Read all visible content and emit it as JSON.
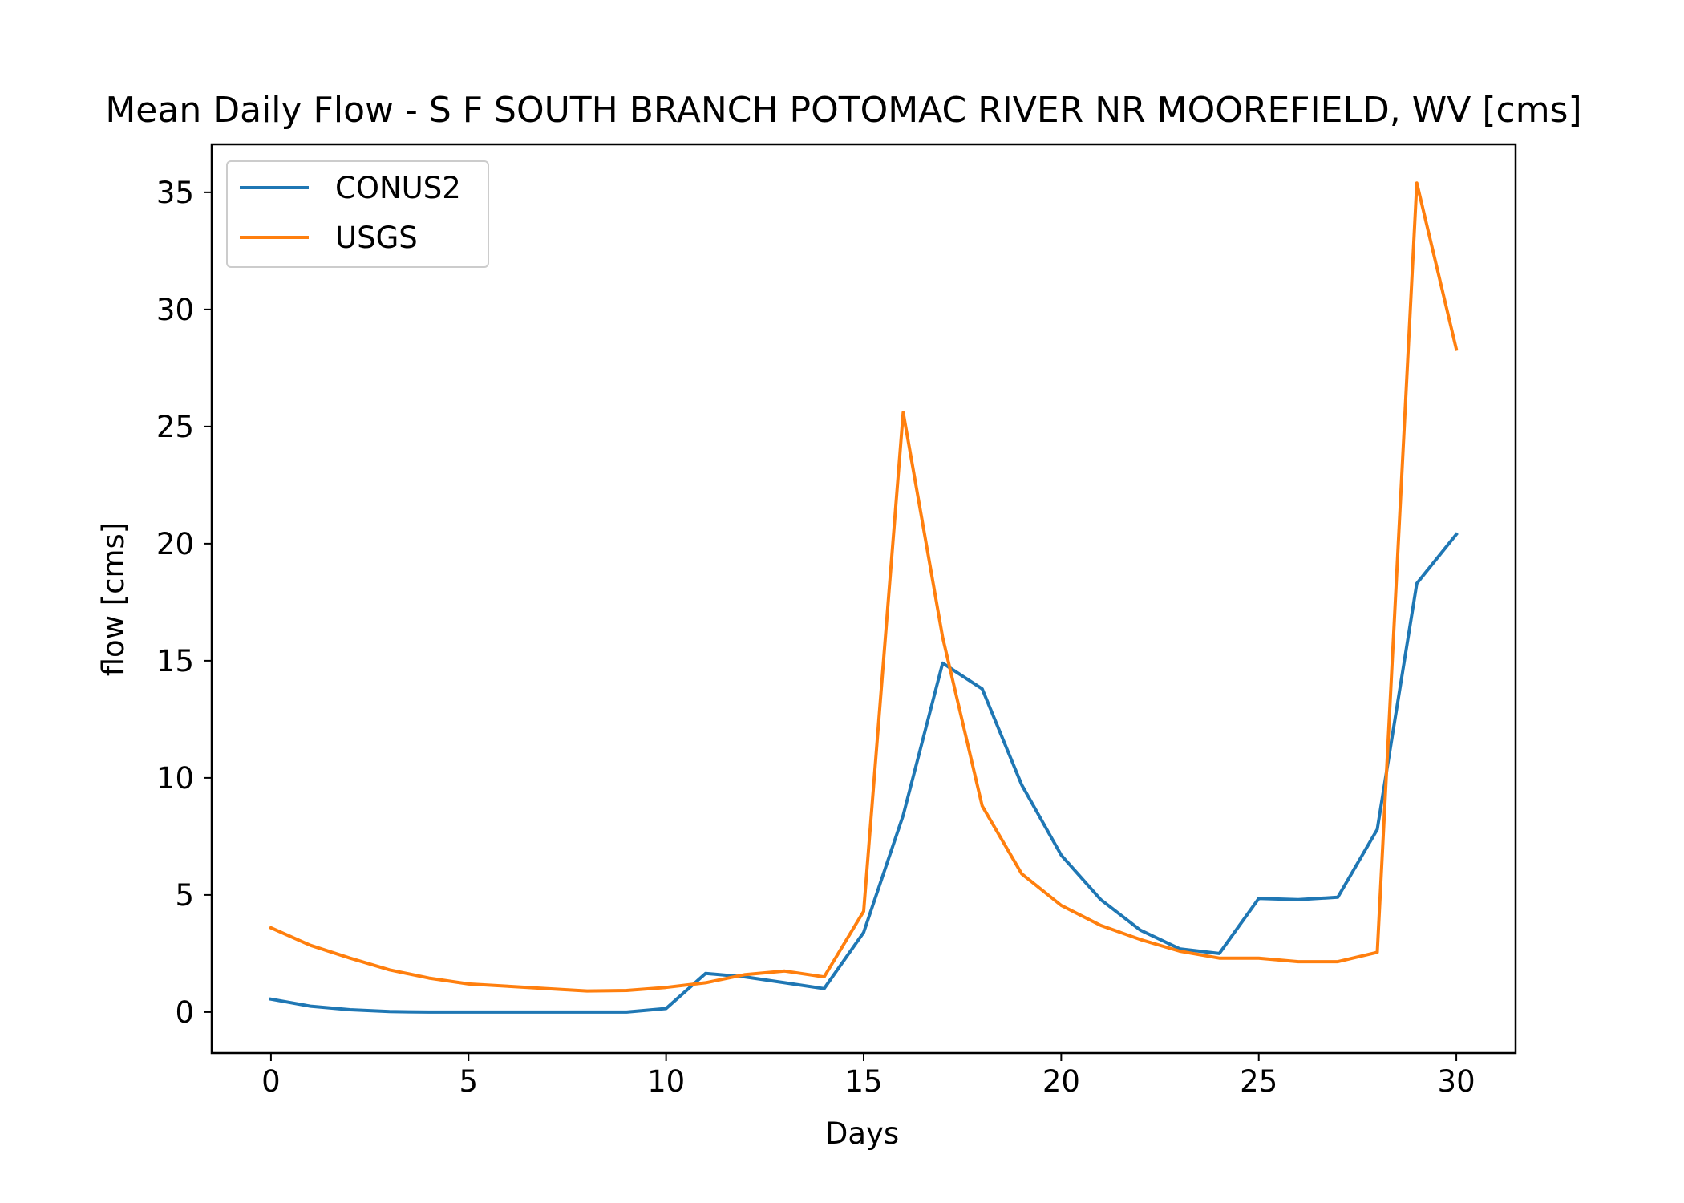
{
  "chart_data": {
    "type": "line",
    "title": "Mean Daily Flow - S F SOUTH BRANCH POTOMAC RIVER NR MOOREFIELD, WV [cms]",
    "xlabel": "Days",
    "ylabel": "flow [cms]",
    "xlim": [
      -1.5,
      31.5
    ],
    "ylim": [
      -1.75,
      37.05
    ],
    "xticks": [
      0,
      5,
      10,
      15,
      20,
      25,
      30
    ],
    "yticks": [
      0,
      5,
      10,
      15,
      20,
      25,
      30,
      35
    ],
    "grid": false,
    "legend_position": "upper left",
    "x": [
      0,
      1,
      2,
      3,
      4,
      5,
      6,
      7,
      8,
      9,
      10,
      11,
      12,
      13,
      14,
      15,
      16,
      17,
      18,
      19,
      20,
      21,
      22,
      23,
      24,
      25,
      26,
      27,
      28,
      29,
      30
    ],
    "series": [
      {
        "name": "CONUS2",
        "color": "#1f77b4",
        "values": [
          0.55,
          0.25,
          0.1,
          0.02,
          0.0,
          0.0,
          0.0,
          0.0,
          0.0,
          0.0,
          0.15,
          1.65,
          1.5,
          1.25,
          1.0,
          3.4,
          8.4,
          14.9,
          13.8,
          9.7,
          6.7,
          4.8,
          3.5,
          2.7,
          2.5,
          4.85,
          4.8,
          4.9,
          7.8,
          18.3,
          20.4
        ]
      },
      {
        "name": "USGS",
        "color": "#ff7f0e",
        "values": [
          3.6,
          2.85,
          2.3,
          1.8,
          1.45,
          1.2,
          1.1,
          1.0,
          0.9,
          0.92,
          1.05,
          1.25,
          1.6,
          1.75,
          1.5,
          4.3,
          25.6,
          16.0,
          8.8,
          5.9,
          4.55,
          3.7,
          3.1,
          2.6,
          2.3,
          2.3,
          2.15,
          2.15,
          2.55,
          35.4,
          28.3
        ]
      }
    ]
  }
}
